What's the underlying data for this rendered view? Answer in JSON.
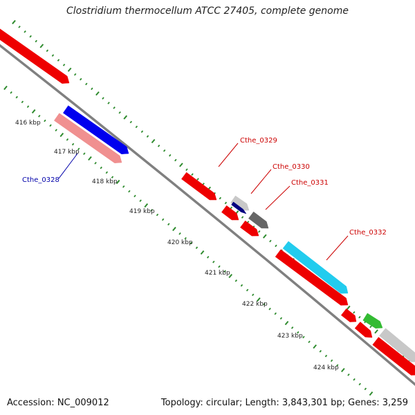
{
  "title": "Clostridium thermocellum ATCC 27405, complete genome",
  "footer": {
    "accession": "Accession: NC_009012",
    "topology": "Topology: circular; Length: 3,843,301 bp; Genes: 3,259"
  },
  "colors": {
    "backbone": "#808080",
    "tick": "#2e8b2e",
    "red": "#ee0000",
    "blue": "#0000ee",
    "pink": "#f09090",
    "cyan": "#22ccee",
    "green": "#33bb33",
    "gray": "#666666",
    "lightgray": "#c8c8c8",
    "navy": "#000080",
    "label_red": "#cc0000",
    "label_blue": "#0000aa"
  },
  "kbp_labels": [
    "416 kbp",
    "417 kbp",
    "418 kbp",
    "419 kbp",
    "420 kbp",
    "421 kbp",
    "422 kbp",
    "423 kbp",
    "424 kbp"
  ],
  "gene_labels": {
    "cthe_0328": "Cthe_0328",
    "cthe_0329": "Cthe_0329",
    "cthe_0330": "Cthe_0330",
    "cthe_0331": "Cthe_0331",
    "cthe_0332": "Cthe_0332"
  }
}
